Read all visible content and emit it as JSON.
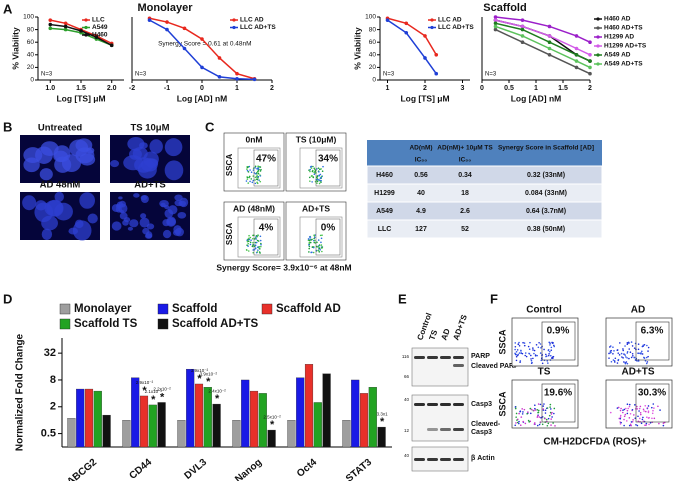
{
  "panel_labels": [
    "A",
    "B",
    "C",
    "D",
    "E",
    "F"
  ],
  "panel_a": {
    "monolayer_title": "Monolayer",
    "scaffold_title": "Scaffold"
  },
  "chart_data": [
    {
      "type": "line",
      "ylabel": "% Viability",
      "xlabel": "Log [TS] μM",
      "note": "N=3",
      "legend": "upper right",
      "xlim": [
        0.8,
        2.2
      ],
      "xticks": [
        {
          "value": 1,
          "label": "1.0"
        },
        {
          "value": 1.5,
          "label": "1.5"
        },
        {
          "value": 2,
          "label": "2.0"
        }
      ],
      "ylim": [
        0,
        100
      ],
      "yticks": [
        0,
        20,
        40,
        60,
        80,
        100
      ],
      "x": [
        1.0,
        1.25,
        1.5,
        1.75,
        2.0
      ],
      "series": [
        {
          "name": "LLC",
          "color": "#e8281e",
          "values": [
            95,
            90,
            80,
            70,
            58
          ]
        },
        {
          "name": "A549",
          "color": "#2ca02c",
          "values": [
            82,
            80,
            75,
            65,
            55
          ]
        },
        {
          "name": "H460",
          "color": "#111111",
          "values": [
            88,
            85,
            78,
            68,
            55
          ]
        }
      ]
    },
    {
      "type": "line",
      "xlabel": "Log [AD] nM",
      "note": "N=3",
      "legend": "upper right",
      "annotation": "Synergy Score = 0.61 at 0.48nM",
      "xlim": [
        -2,
        2
      ],
      "xticks": [
        -2,
        -1,
        0,
        1,
        2
      ],
      "ylim": [
        0,
        100
      ],
      "x": [
        -1.5,
        -1,
        -0.5,
        0,
        0.5,
        1,
        1.5
      ],
      "series": [
        {
          "name": "LLC AD",
          "color": "#e8281e",
          "values": [
            98,
            92,
            82,
            65,
            35,
            10,
            2
          ]
        },
        {
          "name": "LLC AD+TS",
          "color": "#1f3fd6",
          "values": [
            95,
            80,
            50,
            20,
            5,
            2,
            1
          ]
        }
      ]
    },
    {
      "type": "line",
      "ylabel": "% Viability",
      "xlabel": "Log [TS] μM",
      "note": "N=3",
      "legend": "upper right",
      "xlim": [
        0.8,
        3.2
      ],
      "xticks": [
        1,
        2,
        3
      ],
      "ylim": [
        0,
        100
      ],
      "yticks": [
        0,
        20,
        40,
        60,
        80,
        100
      ],
      "x": [
        1,
        1.5,
        2,
        2.3
      ],
      "series": [
        {
          "name": "LLC AD",
          "color": "#e8281e",
          "values": [
            98,
            90,
            70,
            40
          ]
        },
        {
          "name": "LLC AD+TS",
          "color": "#1f3fd6",
          "values": [
            95,
            75,
            35,
            10
          ]
        }
      ]
    },
    {
      "type": "line",
      "xlabel": "Log [AD] nM",
      "note": "N=3",
      "legend": "right",
      "xlim": [
        0,
        2
      ],
      "xticks": [
        0,
        0.5,
        1,
        1.5,
        2
      ],
      "ylim": [
        0,
        100
      ],
      "x": [
        0.25,
        0.75,
        1.25,
        1.75,
        2.0
      ],
      "series": [
        {
          "name": "H460 AD",
          "color": "#111111",
          "values": [
            95,
            85,
            70,
            40,
            30
          ]
        },
        {
          "name": "H460 AD+TS",
          "color": "#555555",
          "values": [
            80,
            60,
            40,
            20,
            10
          ]
        },
        {
          "name": "H1299 AD",
          "color": "#9b1fc9",
          "values": [
            100,
            95,
            85,
            70,
            60
          ]
        },
        {
          "name": "H1299 AD+TS",
          "color": "#d25be8",
          "values": [
            95,
            85,
            70,
            50,
            40
          ]
        },
        {
          "name": "A549 AD",
          "color": "#1e7d1e",
          "values": [
            90,
            80,
            60,
            40,
            30
          ]
        },
        {
          "name": "A549 AD+TS",
          "color": "#5cc25c",
          "values": [
            85,
            70,
            50,
            30,
            20
          ]
        }
      ]
    },
    {
      "type": "bar",
      "ylabel": "Normalized Fold Change",
      "log_scale": true,
      "significance_mark": "*",
      "ylim": [
        0.25,
        70
      ],
      "yticks": [
        0.5,
        2,
        8,
        32
      ],
      "categories": [
        "ABCG2",
        "CD44",
        "DVL3",
        "Nanog",
        "Oct4",
        "STAT3"
      ],
      "series": [
        {
          "name": "Monolayer",
          "color": "#9e9e9e",
          "values": [
            1.1,
            1,
            1,
            1,
            1,
            1
          ]
        },
        {
          "name": "Scaffold",
          "color": "#1a1ae6",
          "values": [
            5,
            9,
            14,
            8,
            9,
            8
          ]
        },
        {
          "name": "Scaffold AD",
          "color": "#e8302a",
          "values": [
            5,
            3.5,
            6.5,
            4.5,
            18,
            4
          ],
          "significance": [
            null,
            "2.9x10⁻²",
            "3.9x10⁻²",
            null,
            null,
            null
          ]
        },
        {
          "name": "Scaffold TS",
          "color": "#22a322",
          "values": [
            4.5,
            2.2,
            5.5,
            4,
            2.5,
            5.5
          ],
          "significance": [
            null,
            "2.1x10⁻²",
            "3.9x10⁻²",
            null,
            null,
            null
          ]
        },
        {
          "name": "Scaffold AD+TS",
          "color": "#111111",
          "values": [
            1.3,
            2.5,
            2.3,
            0.6,
            11,
            0.7
          ],
          "significance": [
            null,
            "2.2x10⁻²",
            "2.4x10⁻²",
            "2.5x10⁻²",
            null,
            "3.3x1"
          ]
        }
      ]
    }
  ],
  "images": {
    "labels": [
      "Untreated",
      "TS 10μM",
      "AD 48nM",
      "AD+TS"
    ]
  },
  "flow": {
    "labels": [
      "0nM",
      "TS (10μM)",
      "AD (48nM)",
      "AD+TS"
    ],
    "percents": [
      "47%",
      "34%",
      "4%",
      "0%"
    ],
    "axis": "SSCA",
    "synergy": "Synergy Score= 3.9x10⁻⁶ at 48nM"
  },
  "table": {
    "columns": [
      "AD(nM)",
      "AD(nM)+ 10μM TS",
      "Synergy Score in Scaffold [AD]"
    ],
    "subheader": [
      "IC₅₀",
      "IC₅₀"
    ],
    "rows": [
      [
        "H460",
        "0.56",
        "0.34",
        "0.32 (33nM)"
      ],
      [
        "H1299",
        "40",
        "18",
        "0.084 (33nM)"
      ],
      [
        "A549",
        "4.9",
        "2.6",
        "0.64 (3.7nM)"
      ],
      [
        "LLC",
        "127",
        "52",
        "0.38 (50nM)"
      ]
    ]
  },
  "western": {
    "lanes": [
      "Control",
      "TS",
      "AD",
      "AD+TS"
    ],
    "proteins": [
      "PARP",
      "Cleaved PARP",
      "Casp3",
      "Cleaved-",
      "Casp3",
      "β Actin"
    ],
    "ladder": [
      "116",
      "66",
      "40",
      "12",
      "40"
    ]
  },
  "ros": {
    "labels": [
      "Control",
      "AD",
      "TS",
      "AD+TS"
    ],
    "percents": [
      "0.9%",
      "6.3%",
      "19.6%",
      "30.3%"
    ],
    "y_label": "SSCA",
    "x_label": "CM-H2DCFDA (ROS)+"
  }
}
